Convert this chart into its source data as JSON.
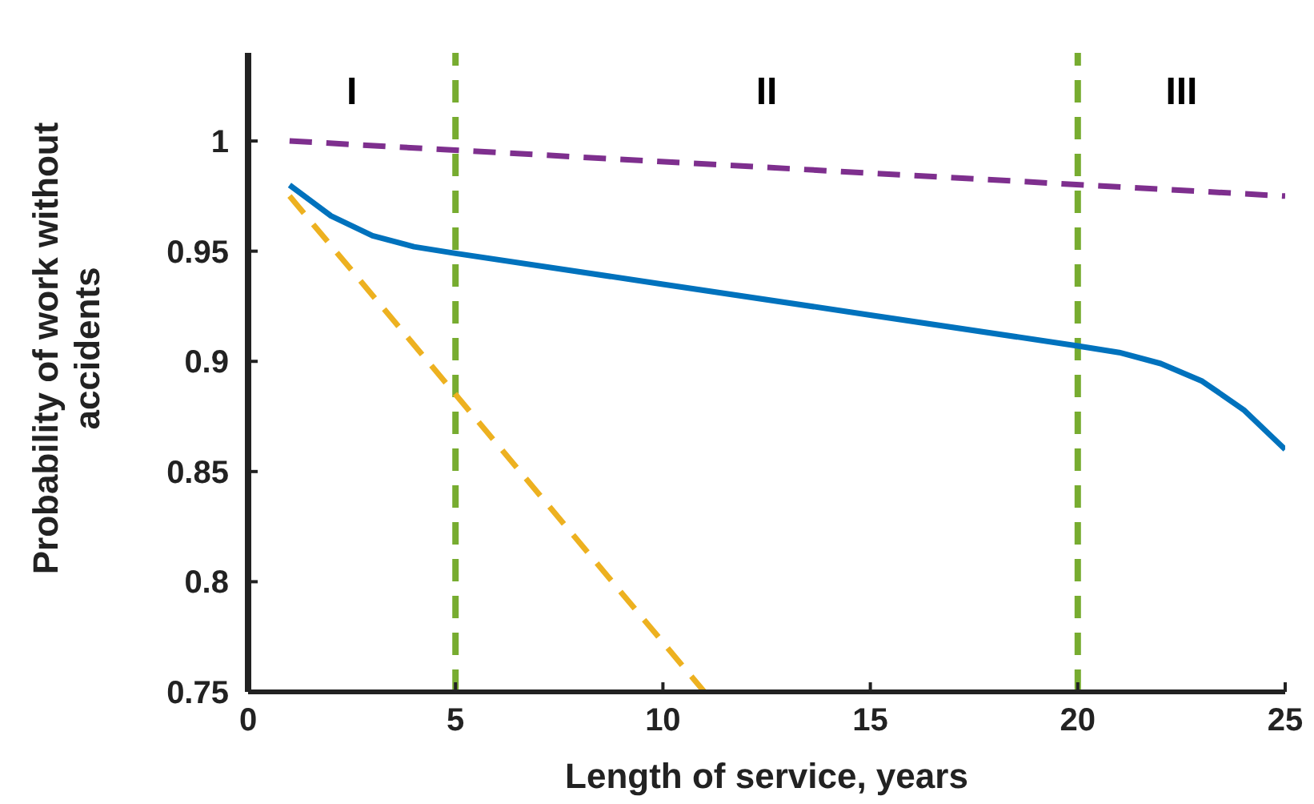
{
  "chart_data": {
    "type": "line",
    "xlabel": "Length of service, years",
    "ylabel": "Probability of work without accidents",
    "xlim": [
      0,
      25
    ],
    "ylim": [
      0.75,
      1.04
    ],
    "xticks": [
      0,
      5,
      10,
      15,
      20,
      25
    ],
    "yticks": [
      0.75,
      0.8,
      0.85,
      0.9,
      0.95,
      1
    ],
    "grid": false,
    "series": [
      {
        "color": "#0072bd",
        "line_style": "solid",
        "x": [
          1,
          2,
          3,
          4,
          5,
          10,
          15,
          20,
          21,
          22,
          23,
          24,
          25
        ],
        "values": [
          0.98,
          0.966,
          0.957,
          0.952,
          0.949,
          0.935,
          0.921,
          0.907,
          0.904,
          0.899,
          0.891,
          0.878,
          0.86
        ]
      },
      {
        "color": "#7e2f8e",
        "line_style": "dashed",
        "x": [
          1,
          25
        ],
        "values": [
          1,
          0.975
        ]
      },
      {
        "color": "#edb120",
        "line_style": "dashed",
        "x": [
          1,
          11
        ],
        "values": [
          0.975,
          0.75
        ]
      }
    ],
    "ref_lines": [
      {
        "axis": "x",
        "value": 5,
        "color": "#77ac30",
        "line_style": "dashed"
      },
      {
        "axis": "x",
        "value": 20,
        "color": "#77ac30",
        "line_style": "dashed"
      }
    ],
    "annotations": [
      "I",
      "II",
      "III"
    ]
  }
}
